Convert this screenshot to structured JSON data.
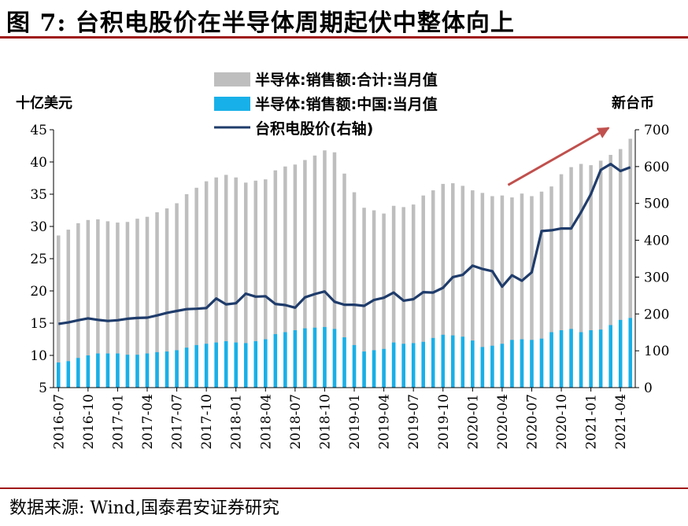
{
  "header": {
    "figure_title": "图 7:  台积电股价在半导体周期起伏中整体向上"
  },
  "footer": {
    "source": "数据来源:  Wind,国泰君安证券研究"
  },
  "colors": {
    "total_bar": "#bebebe",
    "china_bar": "#18b0e8",
    "line": "#1f3c6b",
    "arrow": "#c0504d",
    "rule": "#a01818"
  },
  "chart_data": {
    "type": "bar",
    "left_unit": "十亿美元",
    "right_unit": "新台币",
    "y_left_range": [
      5,
      45
    ],
    "y_left_ticks": [
      "5",
      "10",
      "15",
      "20",
      "25",
      "30",
      "35",
      "40",
      "45"
    ],
    "y_right_range": [
      0,
      700
    ],
    "y_right_ticks": [
      "0",
      "100",
      "200",
      "300",
      "400",
      "500",
      "600",
      "700"
    ],
    "grid": false,
    "legend_position": "top-center",
    "legend": [
      "半导体:销售额:合计:当月值",
      "半导体:销售额:中国:当月值",
      "台积电股价(右轴)"
    ],
    "x_tick_labels": [
      "2016-07",
      "2016-10",
      "2017-01",
      "2017-04",
      "2017-07",
      "2017-10",
      "2018-01",
      "2018-04",
      "2018-07",
      "2018-10",
      "2019-01",
      "2019-04",
      "2019-07",
      "2019-10",
      "2020-01",
      "2020-04",
      "2020-07",
      "2020-10",
      "2021-01",
      "2021-04"
    ],
    "categories": [
      "2016-07",
      "2016-08",
      "2016-09",
      "2016-10",
      "2016-11",
      "2016-12",
      "2017-01",
      "2017-02",
      "2017-03",
      "2017-04",
      "2017-05",
      "2017-06",
      "2017-07",
      "2017-08",
      "2017-09",
      "2017-10",
      "2017-11",
      "2017-12",
      "2018-01",
      "2018-02",
      "2018-03",
      "2018-04",
      "2018-05",
      "2018-06",
      "2018-07",
      "2018-08",
      "2018-09",
      "2018-10",
      "2018-11",
      "2018-12",
      "2019-01",
      "2019-02",
      "2019-03",
      "2019-04",
      "2019-05",
      "2019-06",
      "2019-07",
      "2019-08",
      "2019-09",
      "2019-10",
      "2019-11",
      "2019-12",
      "2020-01",
      "2020-02",
      "2020-03",
      "2020-04",
      "2020-05",
      "2020-06",
      "2020-07",
      "2020-08",
      "2020-09",
      "2020-10",
      "2020-11",
      "2020-12",
      "2021-01",
      "2021-02",
      "2021-03",
      "2021-04",
      "2021-05"
    ],
    "series": [
      {
        "name": "半导体:销售额:合计:当月值",
        "type": "bar",
        "axis": "left",
        "values": [
          28.6,
          29.5,
          30.5,
          31.0,
          31.1,
          30.8,
          30.6,
          30.7,
          31.2,
          31.5,
          32.2,
          32.8,
          33.6,
          35.0,
          36.0,
          37.0,
          37.6,
          38.0,
          37.6,
          36.8,
          37.1,
          37.3,
          38.7,
          39.3,
          39.6,
          40.3,
          41.0,
          41.8,
          41.5,
          38.2,
          35.3,
          32.9,
          32.5,
          32.0,
          33.2,
          33.0,
          33.4,
          34.8,
          35.6,
          36.6,
          36.7,
          36.3,
          35.6,
          35.2,
          34.7,
          34.8,
          34.5,
          35.1,
          34.7,
          35.4,
          36.2,
          38.1,
          39.2,
          39.7,
          39.5,
          40.2,
          41.1,
          42.0,
          43.6
        ]
      },
      {
        "name": "半导体:销售额:中国:当月值",
        "type": "bar",
        "axis": "left",
        "values": [
          8.9,
          9.1,
          9.6,
          10.0,
          10.3,
          10.3,
          10.3,
          10.1,
          10.1,
          10.3,
          10.5,
          10.6,
          10.8,
          11.2,
          11.6,
          11.8,
          12.0,
          12.2,
          12.0,
          11.9,
          12.2,
          12.5,
          13.3,
          13.6,
          13.9,
          14.2,
          14.3,
          14.4,
          14.1,
          12.8,
          11.6,
          10.6,
          10.8,
          11.0,
          12.0,
          11.8,
          11.9,
          12.1,
          12.7,
          13.2,
          13.1,
          12.9,
          12.3,
          11.3,
          11.5,
          11.8,
          12.4,
          12.5,
          12.4,
          12.6,
          13.6,
          13.9,
          14.1,
          13.6,
          13.9,
          14.0,
          14.7,
          15.5,
          15.8
        ]
      },
      {
        "name": "台积电股价(右轴)",
        "type": "line",
        "axis": "right",
        "values": [
          173,
          177,
          183,
          188,
          184,
          181,
          183,
          187,
          189,
          190,
          196,
          203,
          208,
          213,
          214,
          216,
          242,
          226,
          229,
          255,
          247,
          248,
          227,
          224,
          217,
          245,
          254,
          261,
          233,
          225,
          225,
          222,
          238,
          244,
          258,
          236,
          240,
          259,
          258,
          271,
          300,
          306,
          331,
          322,
          316,
          274,
          305,
          290,
          313,
          425,
          427,
          432,
          432,
          476,
          525,
          591,
          607,
          588,
          598
        ]
      }
    ],
    "trend_arrow": {
      "from": [
        "2020-05",
        550
      ],
      "to": [
        "2021-03",
        705
      ]
    }
  }
}
